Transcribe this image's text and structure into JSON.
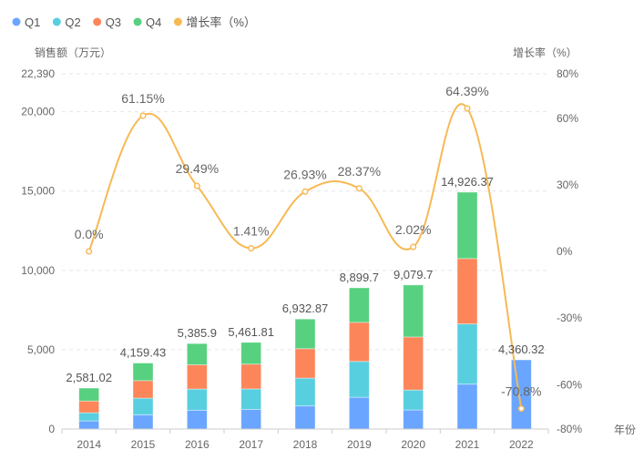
{
  "chart_data": {
    "type": "bar",
    "stacked": true,
    "categories": [
      "2014",
      "2015",
      "2016",
      "2017",
      "2018",
      "2019",
      "2020",
      "2021",
      "2022"
    ],
    "series": [
      {
        "name": "Q1",
        "color": "#6aa6ff",
        "values": [
          513,
          898,
          1186,
          1238,
          1455,
          2004,
          1202,
          2828,
          4360.32
        ]
      },
      {
        "name": "Q2",
        "color": "#58cfdf",
        "values": [
          513,
          1047,
          1335,
          1290,
          1754,
          2257,
          1258,
          3796,
          0
        ]
      },
      {
        "name": "Q3",
        "color": "#fc865a",
        "values": [
          741,
          1105,
          1530,
          1564,
          1856,
          2463,
          3342,
          4122,
          0
        ]
      },
      {
        "name": "Q4",
        "color": "#57d17f",
        "values": [
          814.02,
          1109.43,
          1334.9,
          1369.81,
          1867.87,
          2175.7,
          3277.7,
          4180.37,
          0
        ]
      }
    ],
    "totals_labels": [
      "2,581.02",
      "4,159.43",
      "5,385.9",
      "5,461.81",
      "6,932.87",
      "8,899.7",
      "9,079.7",
      "14,926.37",
      "4,360.32"
    ],
    "line_series": {
      "name": "增长率（%）",
      "color": "#f7b955",
      "axis": "right",
      "values": [
        0.0,
        61.15,
        29.49,
        1.41,
        26.93,
        28.37,
        2.02,
        64.39,
        -70.8
      ],
      "labels": [
        "0.0%",
        "61.15%",
        "29.49%",
        "1.41%",
        "26.93%",
        "28.37%",
        "2.02%",
        "64.39%",
        "-70.8%"
      ]
    },
    "ylabel": "销售额（万元）",
    "ylabel_right": "增长率（%）",
    "xlabel": "年份",
    "ylim": [
      0,
      22390
    ],
    "yticks": [
      0,
      5000,
      10000,
      15000,
      20000,
      22390
    ],
    "ytick_labels": [
      "0",
      "5,000",
      "10,000",
      "15,000",
      "20,000",
      "22,390"
    ],
    "ylim_right": [
      -80,
      80
    ],
    "yticks_right": [
      -80,
      -60,
      -30,
      0,
      30,
      60,
      80
    ],
    "ytick_labels_right": [
      "-80%",
      "-60%",
      "-30%",
      "0%",
      "30%",
      "60%",
      "80%"
    ],
    "legend": [
      "Q1",
      "Q2",
      "Q3",
      "Q4",
      "增长率（%）"
    ],
    "legend_position": "top-left",
    "grid": true
  }
}
